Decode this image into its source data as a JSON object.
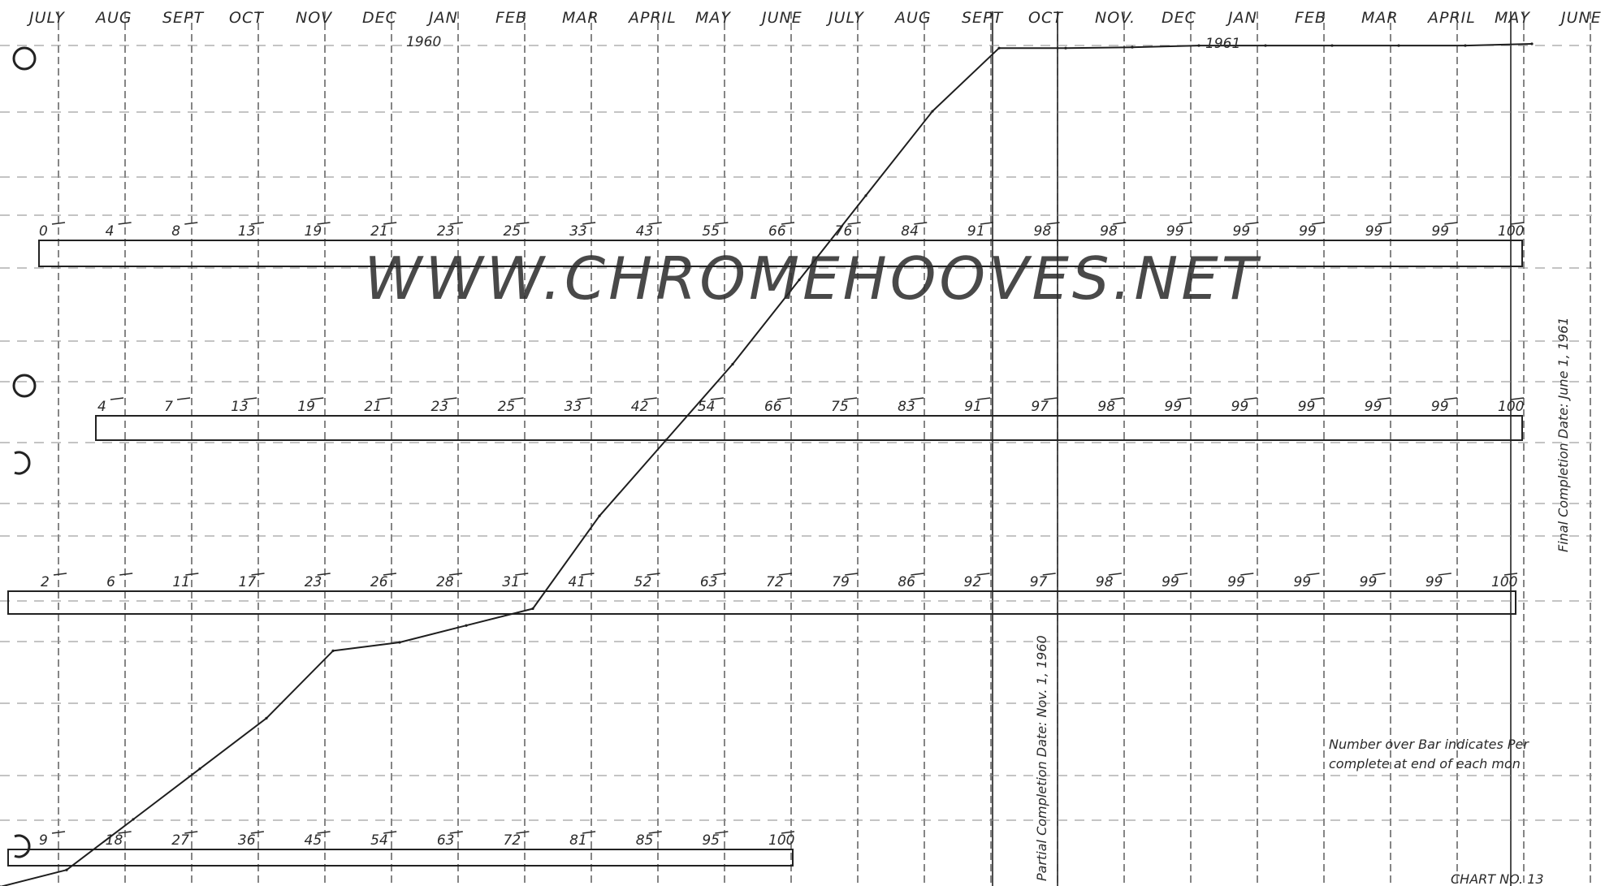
{
  "chart_data": {
    "type": "line",
    "months": [
      "JULY",
      "AUG",
      "SEPT",
      "OCT",
      "NOV",
      "DEC",
      "JAN",
      "FEB",
      "MAR",
      "APRIL",
      "MAY",
      "JUNE",
      "JULY",
      "AUG",
      "SEPT",
      "OCT",
      "NOV.",
      "DEC",
      "JAN",
      "FEB",
      "MAR",
      "APRIL",
      "MAY",
      "JUNE"
    ],
    "year_labels": [
      "1960",
      "1961"
    ],
    "bars": [
      {
        "labels": [
          "0",
          "4",
          "8",
          "13",
          "19",
          "21",
          "23",
          "25",
          "33",
          "43",
          "55",
          "66",
          "76",
          "84",
          "91",
          "98",
          "98",
          "99",
          "99",
          "99",
          "99",
          "99",
          "100"
        ]
      },
      {
        "labels": [
          "4",
          "7",
          "13",
          "19",
          "21",
          "23",
          "25",
          "33",
          "42",
          "54",
          "66",
          "75",
          "83",
          "91",
          "97",
          "98",
          "99",
          "99",
          "99",
          "99",
          "99",
          "100"
        ]
      },
      {
        "labels": [
          "2",
          "6",
          "11",
          "17",
          "23",
          "26",
          "28",
          "31",
          "41",
          "52",
          "63",
          "72",
          "79",
          "86",
          "92",
          "97",
          "98",
          "99",
          "99",
          "99",
          "99",
          "99",
          "100"
        ]
      },
      {
        "labels": [
          "9",
          "18",
          "27",
          "36",
          "45",
          "54",
          "63",
          "72",
          "81",
          "85",
          "95",
          "100"
        ]
      }
    ],
    "curve": {
      "points": [
        [
          0,
          0
        ],
        [
          1,
          2
        ],
        [
          2,
          8
        ],
        [
          3,
          14
        ],
        [
          4,
          20
        ],
        [
          5,
          28
        ],
        [
          6,
          29
        ],
        [
          7,
          31
        ],
        [
          8,
          33
        ],
        [
          9,
          44
        ],
        [
          10,
          53
        ],
        [
          11,
          62
        ],
        [
          12,
          72
        ],
        [
          13,
          82
        ],
        [
          14,
          92
        ],
        [
          15,
          99.5
        ],
        [
          16,
          99.5
        ],
        [
          17,
          99.6
        ],
        [
          18,
          99.8
        ],
        [
          19,
          99.8
        ],
        [
          20,
          99.8
        ],
        [
          21,
          99.8
        ],
        [
          22,
          99.8
        ],
        [
          23,
          100
        ]
      ]
    },
    "annotations": {
      "partial": "Partial Completion Date: Nov. 1, 1960",
      "final": "Final Completion Date: June 1, 1961",
      "note_line1": "Number over Bar indicates Per",
      "note_line2": "complete at end of each mon",
      "chart_no": "CHART NO. 13"
    }
  },
  "watermark": "WWW.CHROMEHOOVES.NET",
  "colors": {
    "ink": "#2a2a2a",
    "grid": "#444444",
    "watermark": "#c8c8c8"
  }
}
